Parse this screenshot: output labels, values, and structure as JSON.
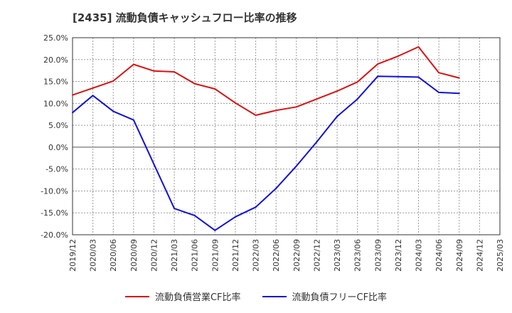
{
  "title": "[2435]  流動負債キャッシュフロー比率の推移",
  "chart_data": {
    "type": "line",
    "title": "[2435]  流動負債キャッシュフロー比率の推移",
    "xlabel": "",
    "ylabel": "",
    "ylim": [
      -20,
      25
    ],
    "yticks": [
      "25.0%",
      "20.0%",
      "15.0%",
      "10.0%",
      "5.0%",
      "0.0%",
      "-5.0%",
      "-10.0%",
      "-15.0%",
      "-20.0%"
    ],
    "categories": [
      "2019/12",
      "2020/03",
      "2020/06",
      "2020/09",
      "2020/12",
      "2021/03",
      "2021/06",
      "2021/09",
      "2021/12",
      "2022/03",
      "2022/06",
      "2022/09",
      "2022/12",
      "2023/03",
      "2023/06",
      "2023/09",
      "2023/12",
      "2024/03",
      "2024/06",
      "2024/09",
      "2024/12",
      "2025/03"
    ],
    "grid": true,
    "legend_position": "bottom",
    "series": [
      {
        "name": "流動負債営業CF比率",
        "color": "#dd1111",
        "values": [
          11.9,
          13.5,
          15.1,
          18.9,
          17.4,
          17.2,
          14.5,
          13.3,
          10.1,
          7.3,
          8.4,
          9.2,
          11.0,
          12.8,
          14.9,
          19.0,
          20.8,
          22.9,
          17.0,
          15.8,
          null,
          null
        ]
      },
      {
        "name": "流動負債フリーCF比率",
        "color": "#1111dd",
        "values": [
          7.9,
          11.8,
          8.2,
          6.2,
          -3.9,
          -14.0,
          -15.6,
          -19.0,
          -15.9,
          -13.7,
          -9.4,
          -4.3,
          1.2,
          7.0,
          11.0,
          16.2,
          16.1,
          16.0,
          12.5,
          12.3,
          null,
          null
        ]
      }
    ]
  }
}
